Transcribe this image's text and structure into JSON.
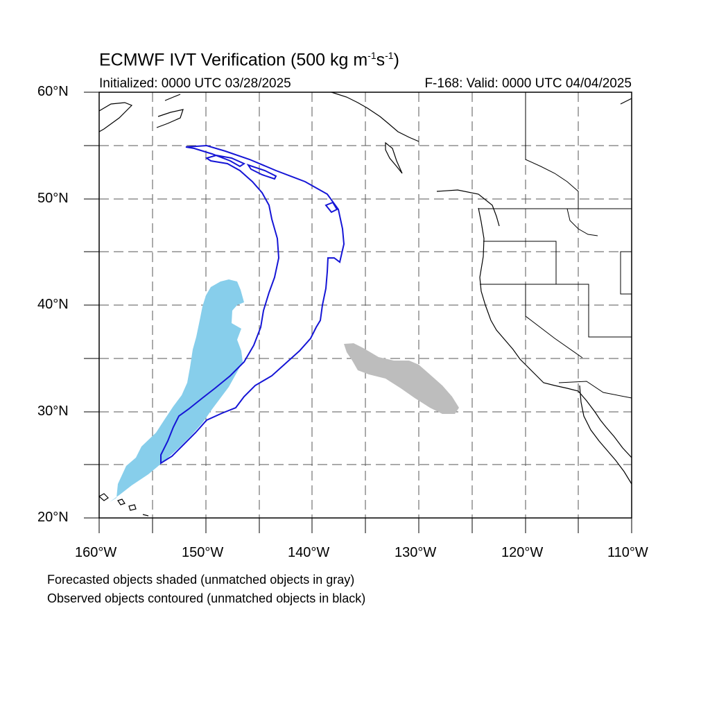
{
  "title": "ECMWF IVT Verification (500 kg m",
  "title_unit_parts": [
    "-1",
    "s",
    "-1",
    ")"
  ],
  "initialized": "Initialized: 0000 UTC 03/28/2025",
  "valid": "F-168: Valid: 0000 UTC 04/04/2025",
  "lat_labels": [
    "60°N",
    "50°N",
    "40°N",
    "30°N",
    "20°N"
  ],
  "lon_labels": [
    "160°W",
    "150°W",
    "140°W",
    "130°W",
    "120°W",
    "110°W"
  ],
  "footer": [
    "Forecasted objects shaded (unmatched objects in gray)",
    "Observed objects contoured (unmatched objects in black)"
  ],
  "colors": {
    "matched_forecast": "#87ceeb",
    "unmatched_forecast": "#bdbdbd",
    "matched_observed": "#1515d6",
    "coastline": "#000000"
  },
  "map": {
    "lon_range": [
      -160,
      -110
    ],
    "lat_range": [
      20,
      60
    ],
    "grid_lines": "dashed every 5°"
  }
}
